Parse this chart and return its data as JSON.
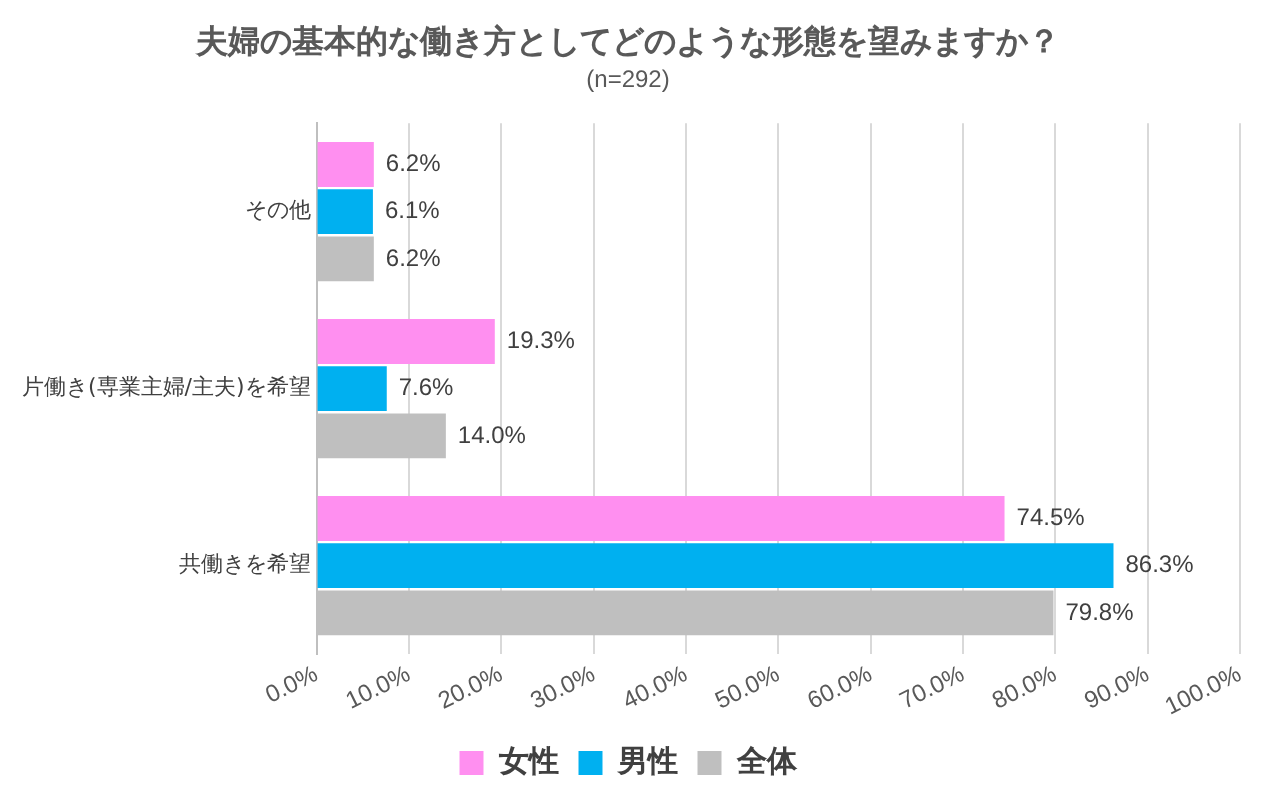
{
  "chart_data": {
    "type": "bar",
    "orientation": "horizontal",
    "title": "夫婦の基本的な働き方としてどのような形態を望みますか？",
    "subtitle": "(n=292)",
    "categories": [
      "その他",
      "片働き(専業主婦/主夫)を希望",
      "共働きを希望"
    ],
    "series": [
      {
        "name": "女性",
        "color": "#ff8ff0",
        "values": [
          6.2,
          19.3,
          74.5
        ],
        "value_labels": [
          "6.2%",
          "19.3%",
          "74.5%"
        ]
      },
      {
        "name": "男性",
        "color": "#00b0f0",
        "values": [
          6.1,
          7.6,
          86.3
        ],
        "value_labels": [
          "6.1%",
          "7.6%",
          "86.3%"
        ]
      },
      {
        "name": "全体",
        "color": "#bfbfbf",
        "values": [
          6.2,
          14.0,
          79.8
        ],
        "value_labels": [
          "6.2%",
          "14.0%",
          "79.8%"
        ]
      }
    ],
    "xlim": [
      0,
      100
    ],
    "xticks": [
      {
        "value": 0,
        "label": "0.0%"
      },
      {
        "value": 10,
        "label": "10.0%"
      },
      {
        "value": 20,
        "label": "20.0%"
      },
      {
        "value": 30,
        "label": "30.0%"
      },
      {
        "value": 40,
        "label": "40.0%"
      },
      {
        "value": 50,
        "label": "50.0%"
      },
      {
        "value": 60,
        "label": "60.0%"
      },
      {
        "value": 70,
        "label": "70.0%"
      },
      {
        "value": 80,
        "label": "80.0%"
      },
      {
        "value": 90,
        "label": "90.0%"
      },
      {
        "value": 100,
        "label": "100.0%"
      }
    ],
    "grid": "x",
    "legend": "bottom"
  }
}
